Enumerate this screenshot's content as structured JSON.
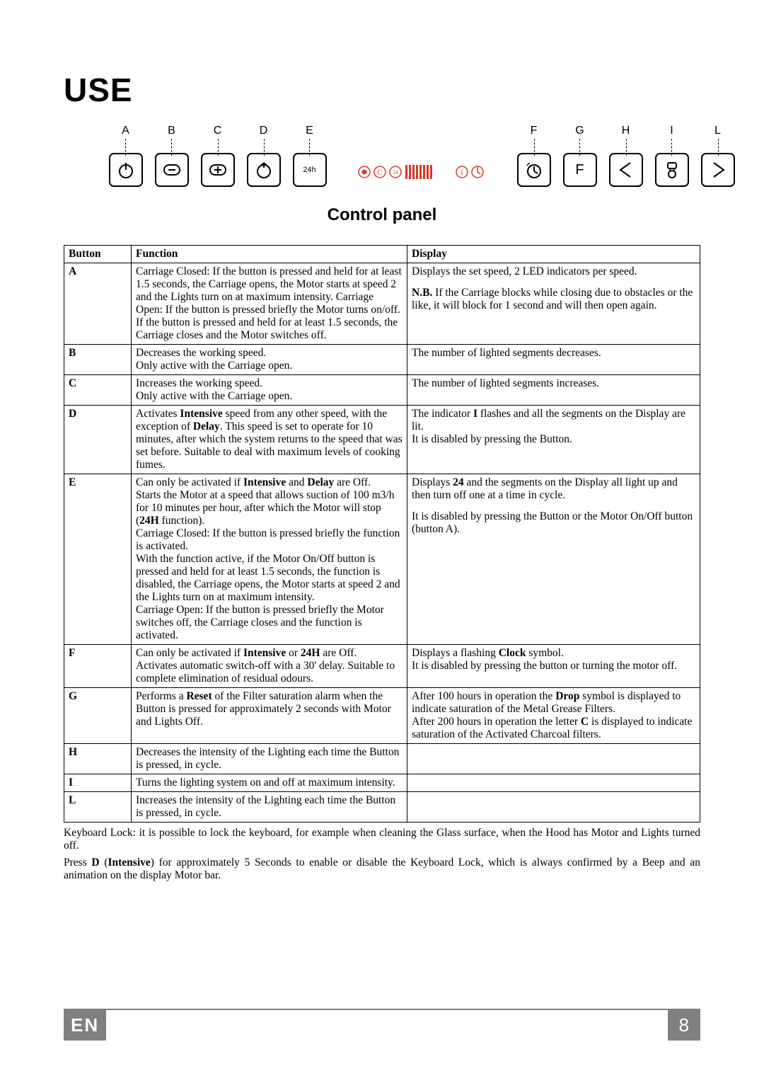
{
  "title": "USE",
  "subtitle": "Control panel",
  "panel_labels": {
    "A": "A",
    "B": "B",
    "C": "C",
    "D": "D",
    "E": "E",
    "F": "F",
    "G": "G",
    "H": "H",
    "I": "I",
    "L": "L"
  },
  "e_text": "24h",
  "disp_F": "F",
  "table": {
    "headers": {
      "button": "Button",
      "function": "Function",
      "display": "Display"
    },
    "rows": [
      {
        "btn": "A",
        "func_html": "Carriage Closed: If the button is pressed and held for at least 1.5 seconds, the Carriage opens, the Motor starts at speed 2 and the Lights turn on at maximum intensity. Carriage Open: If the button is pressed briefly the Motor turns on/off. If the button is pressed and held for at least 1.5 seconds, the Carriage closes and the Motor switches off.",
        "disp_html": "Displays the set speed, 2 LED indicators per speed.||<b>N.B.</b> If the Carriage blocks while closing due to obstacles or the like, it will block for 1 second and will then open again."
      },
      {
        "btn": "B",
        "func_html": "Decreases the working speed.<br>Only active with the Carriage open.",
        "disp_html": "The number of lighted segments decreases."
      },
      {
        "btn": "C",
        "func_html": "Increases the working speed.<br>Only active with the Carriage open.",
        "disp_html": "The number of lighted segments increases."
      },
      {
        "btn": "D",
        "func_html": "Activates <b>Intensive</b> speed from any other speed, with the exception of <b>Delay</b>. This speed is set to operate for 10 minutes, after which the system returns to the speed that was set before. Suitable to deal with maximum levels of cooking fumes.",
        "disp_html": "The indicator <b>I</b> flashes and all the segments on the Display are lit.<br>It is disabled by pressing the Button."
      },
      {
        "btn": "E",
        "func_html": "Can only be activated if <b>Intensive</b> and <b>Delay</b> are Off.<br>Starts the Motor at a speed that allows suction of 100 m3/h for 10 minutes per hour, after which the Motor will stop (<b>24H</b> function).<br>Carriage Closed: If the button is pressed briefly the function is activated.<br>With the function active, if the Motor On/Off button is pressed and held for at least 1.5 seconds, the function is disabled, the Carriage opens, the Motor starts at speed 2 and the Lights turn on at maximum intensity.<br>Carriage Open: If the button is pressed briefly the Motor switches off, the Carriage closes and the function is activated.",
        "disp_html": "Displays <b>24</b> and the segments on the Display all light up and then turn off one at a time in cycle.||It is disabled by pressing the Button or the Motor On/Off button (button A)."
      },
      {
        "btn": "F",
        "func_html": "Can only be activated if <b>Intensive</b> or <b>24H</b> are Off.<br>Activates automatic switch-off with a 30' delay. Suitable to complete elimination of residual odours.",
        "disp_html": "Displays a flashing <b>Clock</b> symbol.<br>It is disabled by pressing the button or turning the motor off."
      },
      {
        "btn": "G",
        "func_html": "Performs a <b>Reset</b> of the Filter saturation alarm when the Button is pressed for approximately 2 seconds with Motor and Lights Off.",
        "disp_html": "After 100 hours in operation the <b>Drop</b> symbol is displayed to indicate saturation of the Metal Grease Filters.<br>After 200 hours in operation the letter <b>C</b> is displayed to indicate saturation of the Activated Charcoal filters."
      },
      {
        "btn": "H",
        "func_html": "Decreases the intensity of the Lighting each time the Button is pressed, in cycle.",
        "disp_html": ""
      },
      {
        "btn": "I",
        "func_html": "Turns the lighting system on and off at maximum intensity.",
        "disp_html": ""
      },
      {
        "btn": "L",
        "func_html": "Increases the intensity of the Lighting each time the Button is pressed, in cycle.",
        "disp_html": ""
      }
    ]
  },
  "footnote1": "Keyboard Lock: it is possible to lock the keyboard, for example when cleaning the Glass surface, when the Hood has Motor and Lights turned off.",
  "footnote2_pre": "Press ",
  "footnote2_bold": "D",
  "footnote2_paren": " (",
  "footnote2_bold2": "Intensive",
  "footnote2_post": ") for approximately 5 Seconds to enable or disable the Keyboard Lock, which is always confirmed by a Beep and an animation on the display Motor bar.",
  "footer": {
    "lang": "EN",
    "page": "8"
  },
  "colors": {
    "footer_bg": "#808080",
    "red": "#d63828",
    "text": "#000000"
  }
}
